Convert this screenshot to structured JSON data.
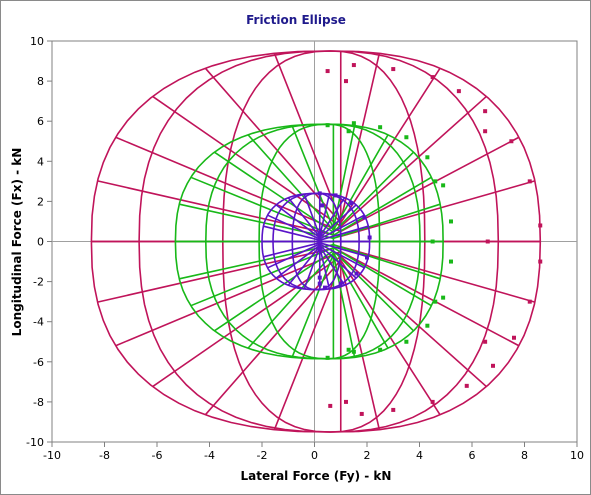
{
  "chart_data": {
    "type": "scatter",
    "title": "Friction Ellipse",
    "xlabel": "Lateral Force (Fy) - kN",
    "ylabel": "Longitudinal Force (Fx) - kN",
    "xlim": [
      -10,
      10
    ],
    "ylim": [
      -10,
      10
    ],
    "xticks": [
      "-10",
      "-8",
      "-6",
      "-4",
      "-2",
      "0",
      "2",
      "4",
      "6",
      "8",
      "10"
    ],
    "yticks": [
      "10",
      "8",
      "6",
      "4",
      "2",
      "0",
      "-2",
      "-4",
      "-6",
      "-8",
      "-10"
    ],
    "grid": false,
    "legend": "none",
    "series": [
      {
        "kind": "ellipse-wireframe",
        "color": "#c0145a",
        "center": [
          0.6,
          0
        ],
        "rx_right": 8.0,
        "rx_left": 9.1,
        "ry": 9.5,
        "scatter_samples": [
          [
            0.5,
            8.5
          ],
          [
            1.5,
            8.8
          ],
          [
            3.0,
            8.6
          ],
          [
            4.5,
            8.2
          ],
          [
            5.5,
            7.5
          ],
          [
            6.5,
            6.5
          ],
          [
            7.5,
            5.0
          ],
          [
            8.2,
            3.0
          ],
          [
            8.6,
            0.8
          ],
          [
            8.6,
            -1.0
          ],
          [
            8.2,
            -3.0
          ],
          [
            7.6,
            -4.8
          ],
          [
            6.8,
            -6.2
          ],
          [
            5.8,
            -7.2
          ],
          [
            4.5,
            -8.0
          ],
          [
            3.0,
            -8.4
          ],
          [
            1.8,
            -8.6
          ],
          [
            0.6,
            -8.2
          ],
          [
            6.5,
            5.5
          ],
          [
            6.6,
            0
          ],
          [
            6.5,
            -5.0
          ],
          [
            1.2,
            8.0
          ],
          [
            1.2,
            -8.0
          ]
        ]
      },
      {
        "kind": "ellipse-wireframe",
        "color": "#18b818",
        "center": [
          0.5,
          0
        ],
        "rx_right": 4.4,
        "rx_left": 5.8,
        "ry": 5.85,
        "scatter_samples": [
          [
            0.5,
            5.8
          ],
          [
            1.5,
            5.9
          ],
          [
            2.5,
            5.7
          ],
          [
            3.5,
            5.2
          ],
          [
            4.3,
            4.2
          ],
          [
            4.9,
            2.8
          ],
          [
            5.2,
            1.0
          ],
          [
            5.2,
            -1.0
          ],
          [
            4.9,
            -2.8
          ],
          [
            4.3,
            -4.2
          ],
          [
            3.5,
            -5.0
          ],
          [
            2.5,
            -5.4
          ],
          [
            1.5,
            -5.5
          ],
          [
            0.5,
            -5.8
          ],
          [
            4.6,
            3.0
          ],
          [
            4.5,
            0
          ],
          [
            4.6,
            -3.0
          ],
          [
            1.3,
            5.5
          ],
          [
            1.3,
            -5.4
          ]
        ]
      },
      {
        "kind": "ellipse-wireframe",
        "color": "#5a14c8",
        "center": [
          0.1,
          0
        ],
        "rx_right": 2.0,
        "rx_left": 2.1,
        "ry": 2.4,
        "scatter_samples": [
          [
            0.2,
            2.4
          ],
          [
            0.8,
            2.3
          ],
          [
            1.4,
            1.9
          ],
          [
            1.9,
            1.2
          ],
          [
            2.1,
            0.2
          ],
          [
            2.0,
            -0.8
          ],
          [
            1.6,
            -1.6
          ],
          [
            1.0,
            -2.1
          ],
          [
            0.4,
            -2.3
          ],
          [
            0.2,
            -2.1
          ],
          [
            0.3,
            1.8
          ],
          [
            0.2,
            -1.8
          ]
        ]
      }
    ]
  }
}
